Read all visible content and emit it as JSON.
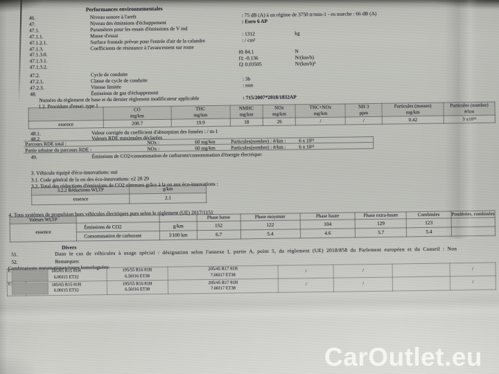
{
  "header": {
    "title": "Performances environnementales"
  },
  "env_rows": [
    {
      "num": "46.",
      "label": "Niveau sonore à l'arrêt",
      "value": ": 75 dB (A)   à un régime de 3750 tr/min-1 - en marche :   66 dB (A)",
      "unit": ""
    },
    {
      "num": "47.",
      "label": "Niveau des émissions d'échappement",
      "value": ": Euro 6 AP",
      "unit": "",
      "bold_value": true
    },
    {
      "num": "47.1.",
      "label": "Paramètres pour les essais d'émissions de V ind",
      "value": "",
      "unit": ""
    },
    {
      "num": "47.1.1.",
      "label": "Masse d'essai",
      "value": ": 1312",
      "unit": "kg"
    },
    {
      "num": "47.1.2.1.",
      "label": "Surface frontale prévue pour l'entrée d'air de la calandre",
      "value": ": / cm²",
      "unit": ""
    },
    {
      "num": "47.1.3.",
      "label": "Coefficients de résistance à l'avancement sur route",
      "value": "",
      "unit": ""
    },
    {
      "num": "47.1.3.0.",
      "flabel": "f0",
      "value": ": 84.1",
      "unit": "N"
    },
    {
      "num": "47.1.3.1.",
      "flabel": "f1",
      "value": ": -0.136",
      "unit": "N/(km/h)"
    },
    {
      "num": "47.1.3.2.",
      "flabel": "f2",
      "value": ": 0.03505",
      "unit": "N/(km/h)²"
    },
    {
      "num": "47.2.",
      "label": "Cycle de conduite",
      "value": "",
      "unit": ""
    },
    {
      "num": "47.2.1.",
      "label": "Classe de cycle de conduite",
      "value": ": 3b",
      "unit": ""
    },
    {
      "num": "47.2.3.",
      "label": "Vitesse limitée",
      "value": ": non",
      "unit": ""
    },
    {
      "num": "48.",
      "label": "Émissions de gaz d'échappement",
      "value": "",
      "unit": ""
    },
    {
      "num": "",
      "label": "Numéro du règlement de base et du dernier règlement modificateur applicable",
      "indent": 58,
      "value": ": 715/2007*2018/1832AP",
      "unit": "",
      "bold_value": true
    },
    {
      "num": "",
      "label": "1.2. Procédure d'essai: type 1",
      "indent": 57,
      "value": "",
      "unit": ""
    }
  ],
  "emission_table": {
    "headers": [
      "",
      "CO\nmg/km",
      "THC\nmg/km",
      "NMHC\nmg/km",
      "NOx\nmg/km",
      "THC+NOx\nmg/km",
      "NH 3\nppm",
      "Particules (masses)\nmg/km",
      "Particules (nombre)\n#/km"
    ],
    "rows": [
      [
        "essence",
        "208.7",
        "19.9",
        "18",
        "26",
        "/",
        "/",
        "0.42",
        "3 x10¹¹"
      ]
    ]
  },
  "rde": {
    "row_48_1": {
      "num": "48.1.",
      "label": "Valeur corrigée du coefficient d'absorption des fumées : / m-1"
    },
    "row_48_2": {
      "num": "48.2.",
      "label": "Valeurs RDE maximales déclarées"
    },
    "rows": [
      [
        "Parcours RDE total :",
        "NOx :",
        "60 mg/km",
        "Particules(nombre) : #/km :",
        "6 x 10¹¹"
      ],
      [
        "Partie urbaine du parcours RDE :",
        "NOx :",
        "60 mg/km",
        "Particules(nombre) : #/km :",
        "6 x 10¹¹"
      ]
    ],
    "row_49": {
      "num": "49.",
      "label": "Émissions de CO2/consommation de carburant/consommation d'énergie électrique:"
    }
  },
  "eco": {
    "line3": "3. Véhicule équipé d'éco-innovations: oui",
    "line31": "3.1. Code général de la ou des éco-innovations: e2 28 29",
    "line32": "3.2. Total des réductions d'émissions de CO2 obtenues grâce à la ou aux éco-innovations :",
    "table": {
      "headers": [
        "3.2.2 Réductions WLTP",
        "g/km"
      ],
      "rows": [
        [
          "essence",
          "2.1"
        ]
      ]
    }
  },
  "wltp": {
    "line4": "4. Tous systèmes de propulsion hors véhicules électriques purs selon le règlement (UE) 2017/1151",
    "corner": "Valeurs WLTP",
    "fuel": "essence",
    "phase_headers": [
      "Phase basse",
      "Phase moyenne",
      "Phase haute",
      "Phase extra-haute",
      "Combinées",
      "Pondérées, combinées"
    ],
    "rows": [
      {
        "param": "Émissions de CO2",
        "unit": "g/km",
        "values": [
          "152",
          "122",
          "104",
          "129",
          "123",
          ""
        ]
      },
      {
        "param": "Consommation de carburant",
        "unit": "l/100 km",
        "values": [
          "6.7",
          "5.4",
          "4.6",
          "5.7",
          "5.4",
          ""
        ]
      }
    ]
  },
  "divers": {
    "title": "Divers",
    "row51": {
      "num": "51.",
      "text": "Dans le cas de véhicules à usage spécial : désignation selon l'annexe I, partie A, point 5, du règlement (UE) 2018/858 du Parlement européen et du Conseil : Non"
    },
    "row52": {
      "num": "52.",
      "text": "Remarques:"
    },
    "tyres_label": "Combinaisons pneumatiques/roues homologuées:",
    "tyre_rows": [
      {
        "label": "F.1",
        "cells": [
          "185/65 R15 81H\n6.00J15 ET32",
          "195/55 R16 81H\n6.50J16 ET38",
          "205/45 R17 81H\n7.00J17 ET38",
          "/",
          "/",
          "",
          "/"
        ]
      },
      {
        "label": "F.2",
        "cells": [
          "185/65 R15 81H\n6.00J15 ET32",
          "195/55 R16 81H\n6.50J16 ET38",
          "205/45 R17 81H\n7.00J17 ET38",
          "/",
          "/",
          "",
          "/"
        ]
      }
    ]
  },
  "watermark": "CarOutlet.eu",
  "colors": {
    "paper": "#bcbdb7",
    "ink": "#24252d",
    "watermark": "#fbfbf9",
    "redaction": "#9c9d98"
  }
}
